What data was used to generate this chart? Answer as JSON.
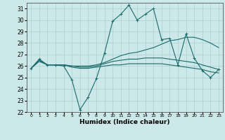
{
  "title": "",
  "xlabel": "Humidex (Indice chaleur)",
  "ylabel": "",
  "bg_color": "#cce8e8",
  "grid_color": "#aacfcf",
  "line_color": "#1a6b6b",
  "xlim": [
    -0.5,
    23.5
  ],
  "ylim": [
    22,
    31.5
  ],
  "yticks": [
    22,
    23,
    24,
    25,
    26,
    27,
    28,
    29,
    30,
    31
  ],
  "xtick_labels": [
    "0",
    "1",
    "2",
    "3",
    "4",
    "5",
    "6",
    "7",
    "8",
    "9",
    "10",
    "11",
    "12",
    "13",
    "14",
    "15",
    "16",
    "17",
    "18",
    "19",
    "20",
    "21",
    "22",
    "23"
  ],
  "series1": [
    25.8,
    26.6,
    26.1,
    26.1,
    26.0,
    24.8,
    22.2,
    23.3,
    24.9,
    27.1,
    29.9,
    30.5,
    31.3,
    30.0,
    30.5,
    31.0,
    28.3,
    28.4,
    26.1,
    28.8,
    26.7,
    25.6,
    25.0,
    25.7
  ],
  "series2": [
    25.8,
    26.5,
    26.1,
    26.1,
    26.1,
    26.0,
    26.0,
    26.0,
    26.1,
    26.3,
    26.6,
    26.9,
    27.1,
    27.2,
    27.4,
    27.6,
    27.9,
    28.2,
    28.3,
    28.5,
    28.5,
    28.3,
    28.0,
    27.6
  ],
  "series3": [
    25.8,
    26.5,
    26.1,
    26.1,
    26.1,
    26.0,
    25.9,
    25.9,
    26.0,
    26.2,
    26.4,
    26.5,
    26.6,
    26.6,
    26.7,
    26.7,
    26.7,
    26.6,
    26.5,
    26.4,
    26.3,
    26.1,
    25.9,
    25.7
  ],
  "series4": [
    25.8,
    26.4,
    26.1,
    26.1,
    26.1,
    25.9,
    25.8,
    25.8,
    25.9,
    26.0,
    26.1,
    26.1,
    26.2,
    26.2,
    26.2,
    26.2,
    26.2,
    26.1,
    26.0,
    25.9,
    25.8,
    25.7,
    25.5,
    25.4
  ]
}
